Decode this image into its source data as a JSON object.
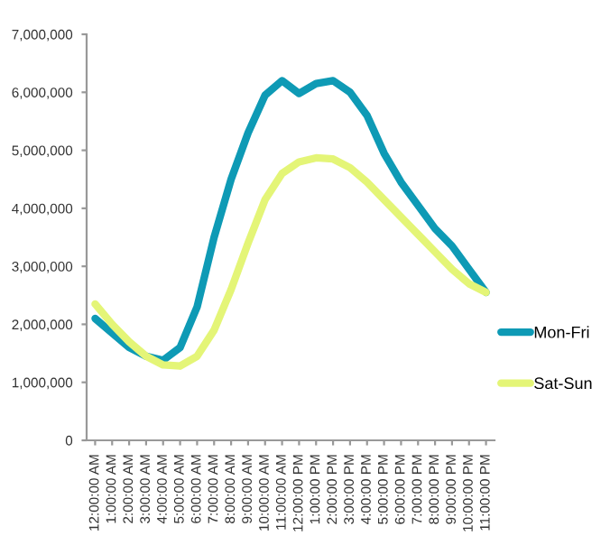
{
  "chart_data": {
    "type": "line",
    "categories": [
      "12:00:00 AM",
      "1:00:00 AM",
      "2:00:00 AM",
      "3:00:00 AM",
      "4:00:00 AM",
      "5:00:00 AM",
      "6:00:00 AM",
      "7:00:00 AM",
      "8:00:00 AM",
      "9:00:00 AM",
      "10:00:00 AM",
      "11:00:00 AM",
      "12:00:00 PM",
      "1:00:00 PM",
      "2:00:00 PM",
      "3:00:00 PM",
      "4:00:00 PM",
      "5:00:00 PM",
      "6:00:00 PM",
      "7:00:00 PM",
      "8:00:00 PM",
      "9:00:00 PM",
      "10:00:00 PM",
      "11:00:00 PM"
    ],
    "series": [
      {
        "name": "Mon-Fri",
        "color": "#0e9ab5",
        "values": [
          2100000,
          1850000,
          1600000,
          1450000,
          1380000,
          1600000,
          2300000,
          3500000,
          4500000,
          5300000,
          5950000,
          6200000,
          5980000,
          6150000,
          6200000,
          6000000,
          5600000,
          4950000,
          4450000,
          4050000,
          3650000,
          3350000,
          2950000,
          2550000
        ]
      },
      {
        "name": "Sat-Sun",
        "color": "#e4f577",
        "values": [
          2350000,
          2000000,
          1700000,
          1450000,
          1300000,
          1280000,
          1450000,
          1900000,
          2600000,
          3400000,
          4150000,
          4600000,
          4800000,
          4870000,
          4850000,
          4700000,
          4450000,
          4150000,
          3850000,
          3550000,
          3250000,
          2950000,
          2700000,
          2550000
        ]
      }
    ],
    "ylim": [
      0,
      7000000
    ],
    "yticks": [
      {
        "value": 0,
        "label": "0"
      },
      {
        "value": 1000000,
        "label": "1,000,000"
      },
      {
        "value": 2000000,
        "label": "2,000,000"
      },
      {
        "value": 3000000,
        "label": "3,000,000"
      },
      {
        "value": 4000000,
        "label": "4,000,000"
      },
      {
        "value": 5000000,
        "label": "5,000,000"
      },
      {
        "value": 6000000,
        "label": "6,000,000"
      },
      {
        "value": 7000000,
        "label": "7,000,000"
      }
    ],
    "grid": false,
    "legend": "right",
    "marker": "none",
    "line_style": "solid"
  }
}
